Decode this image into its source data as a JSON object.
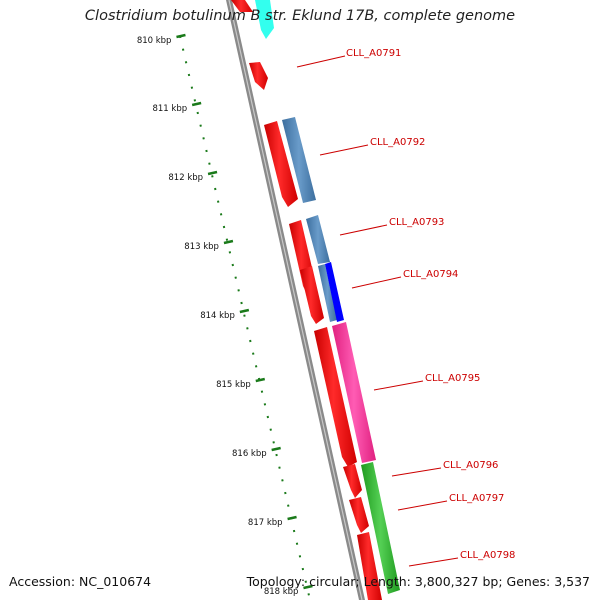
{
  "title": "Clostridium botulinum B str. Eklund 17B, complete genome",
  "accession_text": "Accession: NC_010674",
  "summary_text": "Topology: circular; Length: 3,800,327 bp; Genes: 3,537",
  "colors": {
    "backbone": "#8a8a8a",
    "tick": "#1a7a1a",
    "cds": "#ff0000",
    "label": "#cc0000",
    "steelblue": "#4f86b8",
    "blue": "#0000ff",
    "magenta": "#ff3aa6",
    "green": "#33bb33",
    "cyan": "#33ffee"
  },
  "scale_ticks": [
    {
      "label": "810 kbp"
    },
    {
      "label": "811 kbp"
    },
    {
      "label": "812 kbp"
    },
    {
      "label": "813 kbp"
    },
    {
      "label": "814 kbp"
    },
    {
      "label": "815 kbp"
    },
    {
      "label": "816 kbp"
    },
    {
      "label": "817 kbp"
    },
    {
      "label": "818 kbp"
    }
  ],
  "genes": [
    {
      "label": "CLL_A0791"
    },
    {
      "label": "CLL_A0792"
    },
    {
      "label": "CLL_A0793"
    },
    {
      "label": "CLL_A0794"
    },
    {
      "label": "CLL_A0795"
    },
    {
      "label": "CLL_A0796"
    },
    {
      "label": "CLL_A0797"
    },
    {
      "label": "CLL_A0798"
    }
  ]
}
